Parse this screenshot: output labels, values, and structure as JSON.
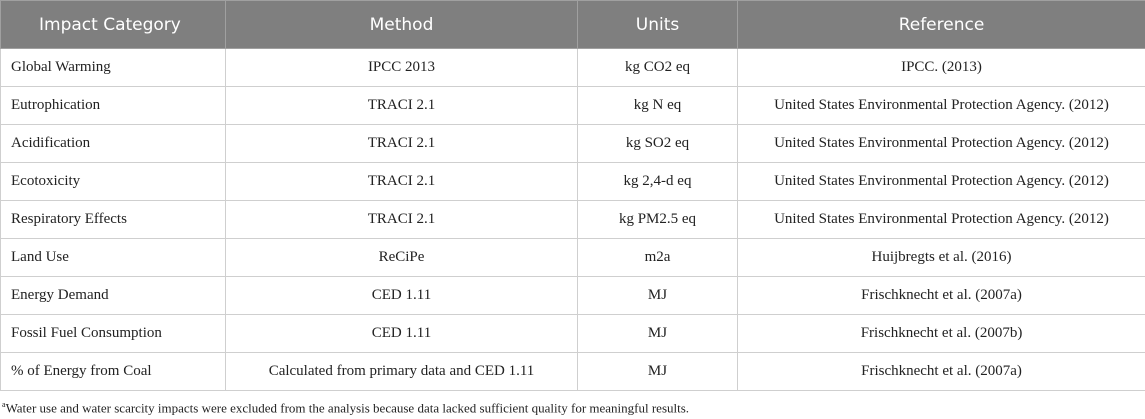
{
  "table": {
    "header": [
      "Impact Category",
      "Method",
      "Units",
      "Reference"
    ],
    "rows": [
      [
        "Global Warming",
        "IPCC 2013",
        "kg CO2 eq",
        "IPCC. (2013)"
      ],
      [
        "Eutrophication",
        "TRACI 2.1",
        "kg N eq",
        "United States Environmental Protection Agency. (2012)"
      ],
      [
        "Acidification",
        "TRACI 2.1",
        "kg SO2 eq",
        "United States Environmental Protection Agency. (2012)"
      ],
      [
        "Ecotoxicity",
        "TRACI 2.1",
        "kg 2,4-d eq",
        "United States Environmental Protection Agency. (2012)"
      ],
      [
        "Respiratory Effects",
        "TRACI 2.1",
        "kg PM2.5 eq",
        "United States Environmental Protection Agency. (2012)"
      ],
      [
        "Land Use",
        "ReCiPe",
        "m2a",
        "Huijbregts et al. (2016)"
      ],
      [
        "Energy Demand",
        "CED 1.11",
        "MJ",
        "Frischknecht et al. (2007a)"
      ],
      [
        "Fossil Fuel Consumption",
        "CED 1.11",
        "MJ",
        "Frischknecht et al. (2007b)"
      ],
      [
        "% of Energy from Coal",
        "Calculated from primary data and CED 1.11",
        "MJ",
        "Frischknecht et al. (2007a)"
      ]
    ]
  },
  "footnote": {
    "marker": "a",
    "text": "Water use and water scarcity impacts were excluded from the analysis because data lacked sufficient quality for meaningful results."
  }
}
